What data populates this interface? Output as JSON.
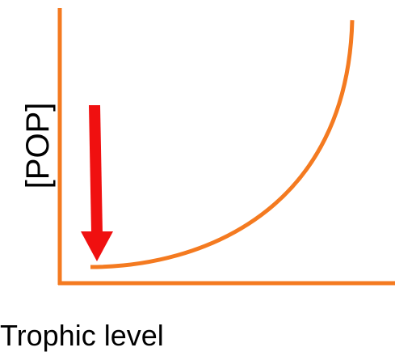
{
  "axes": {
    "y_label": "[POP]",
    "x_label": "Trophic level"
  }
}
